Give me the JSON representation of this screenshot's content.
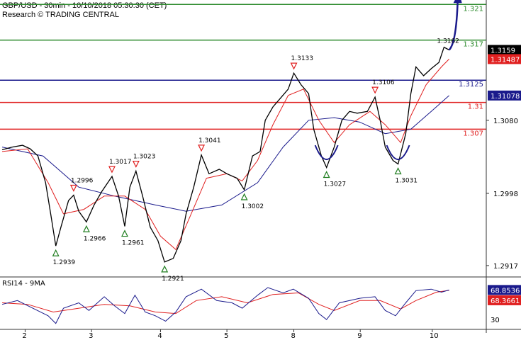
{
  "header": {
    "line1": "GBP/USD - 30min - 10/10/2018 05:30:30 (CET)",
    "line2": "Research © TRADING CENTRAL"
  },
  "chart_data": {
    "type": "line",
    "title": "GBP/USD - 30min - 10/10/2018 05:30:30 (CET)",
    "price_ylim": [
      1.2905,
      1.3215
    ],
    "x_ticks": [
      {
        "label": "2",
        "t": 0.045
      },
      {
        "label": "3",
        "t": 0.175
      },
      {
        "label": "4",
        "t": 0.31
      },
      {
        "label": "5",
        "t": 0.44
      },
      {
        "label": "8",
        "t": 0.571
      },
      {
        "label": "9",
        "t": 0.701
      },
      {
        "label": "10",
        "t": 0.842
      }
    ],
    "y_ticks": [
      "1.3080",
      "1.2998",
      "1.2917"
    ],
    "y_tick_values": [
      1.308,
      1.2998,
      1.2917
    ],
    "levels": [
      {
        "label": "1.321",
        "value": 1.321,
        "color": "#2e8b2e"
      },
      {
        "label": "1.317",
        "value": 1.317,
        "color": "#2e8b2e"
      },
      {
        "label": "1.3125",
        "value": 1.3125,
        "color": "#1a1a8c"
      },
      {
        "label": "1.31",
        "value": 1.31,
        "color": "#e02020"
      },
      {
        "label": "1.307",
        "value": 1.307,
        "color": "#e02020"
      }
    ],
    "last_price": {
      "label": "1.3159",
      "value": 1.3159
    },
    "ema_fast_tag": {
      "label": "1.31487",
      "value": 1.31487
    },
    "ema_slow_tag": {
      "label": "1.31078",
      "value": 1.31078
    },
    "price_path": [
      [
        0.0,
        1.3047
      ],
      [
        0.02,
        1.305
      ],
      [
        0.04,
        1.3052
      ],
      [
        0.055,
        1.3048
      ],
      [
        0.07,
        1.304
      ],
      [
        0.085,
        1.301
      ],
      [
        0.095,
        1.2975
      ],
      [
        0.105,
        1.2939
      ],
      [
        0.115,
        1.296
      ],
      [
        0.13,
        1.299
      ],
      [
        0.14,
        1.2996
      ],
      [
        0.15,
        1.2978
      ],
      [
        0.165,
        1.2966
      ],
      [
        0.18,
        1.2985
      ],
      [
        0.195,
        1.3
      ],
      [
        0.215,
        1.3017
      ],
      [
        0.228,
        1.2995
      ],
      [
        0.24,
        1.2961
      ],
      [
        0.25,
        1.3005
      ],
      [
        0.262,
        1.3023
      ],
      [
        0.275,
        1.2995
      ],
      [
        0.29,
        1.296
      ],
      [
        0.305,
        1.2945
      ],
      [
        0.318,
        1.2921
      ],
      [
        0.335,
        1.2925
      ],
      [
        0.35,
        1.2945
      ],
      [
        0.36,
        1.2975
      ],
      [
        0.375,
        1.3005
      ],
      [
        0.39,
        1.3041
      ],
      [
        0.405,
        1.302
      ],
      [
        0.425,
        1.3025
      ],
      [
        0.44,
        1.302
      ],
      [
        0.46,
        1.3015
      ],
      [
        0.474,
        1.3002
      ],
      [
        0.49,
        1.304
      ],
      [
        0.505,
        1.3045
      ],
      [
        0.515,
        1.308
      ],
      [
        0.53,
        1.3095
      ],
      [
        0.545,
        1.3105
      ],
      [
        0.56,
        1.3115
      ],
      [
        0.571,
        1.3133
      ],
      [
        0.585,
        1.312
      ],
      [
        0.6,
        1.311
      ],
      [
        0.61,
        1.307
      ],
      [
        0.625,
        1.304
      ],
      [
        0.635,
        1.3027
      ],
      [
        0.65,
        1.305
      ],
      [
        0.665,
        1.308
      ],
      [
        0.68,
        1.309
      ],
      [
        0.695,
        1.3088
      ],
      [
        0.715,
        1.309
      ],
      [
        0.73,
        1.3106
      ],
      [
        0.74,
        1.308
      ],
      [
        0.75,
        1.305
      ],
      [
        0.765,
        1.3035
      ],
      [
        0.775,
        1.3031
      ],
      [
        0.79,
        1.3065
      ],
      [
        0.8,
        1.311
      ],
      [
        0.81,
        1.314
      ],
      [
        0.825,
        1.313
      ],
      [
        0.84,
        1.3138
      ],
      [
        0.855,
        1.3145
      ],
      [
        0.865,
        1.3162
      ],
      [
        0.875,
        1.3159
      ]
    ],
    "ema_fast_path": [
      [
        0.0,
        1.3045
      ],
      [
        0.05,
        1.3048
      ],
      [
        0.09,
        1.301
      ],
      [
        0.12,
        1.2975
      ],
      [
        0.16,
        1.298
      ],
      [
        0.2,
        1.2995
      ],
      [
        0.24,
        1.2995
      ],
      [
        0.28,
        1.298
      ],
      [
        0.31,
        1.295
      ],
      [
        0.34,
        1.2935
      ],
      [
        0.37,
        1.2975
      ],
      [
        0.4,
        1.3015
      ],
      [
        0.44,
        1.302
      ],
      [
        0.47,
        1.3012
      ],
      [
        0.5,
        1.3035
      ],
      [
        0.53,
        1.3075
      ],
      [
        0.56,
        1.3108
      ],
      [
        0.59,
        1.3115
      ],
      [
        0.62,
        1.308
      ],
      [
        0.65,
        1.3055
      ],
      [
        0.68,
        1.3075
      ],
      [
        0.72,
        1.309
      ],
      [
        0.75,
        1.3075
      ],
      [
        0.78,
        1.3055
      ],
      [
        0.8,
        1.3085
      ],
      [
        0.83,
        1.312
      ],
      [
        0.86,
        1.314
      ],
      [
        0.875,
        1.31487
      ]
    ],
    "ema_slow_path": [
      [
        0.0,
        1.305
      ],
      [
        0.08,
        1.304
      ],
      [
        0.15,
        1.3005
      ],
      [
        0.22,
        1.2995
      ],
      [
        0.3,
        1.2985
      ],
      [
        0.36,
        1.2978
      ],
      [
        0.43,
        1.2985
      ],
      [
        0.5,
        1.301
      ],
      [
        0.55,
        1.305
      ],
      [
        0.6,
        1.308
      ],
      [
        0.65,
        1.3083
      ],
      [
        0.7,
        1.3078
      ],
      [
        0.75,
        1.3065
      ],
      [
        0.8,
        1.307
      ],
      [
        0.84,
        1.309
      ],
      [
        0.875,
        1.31078
      ]
    ],
    "annotations": [
      {
        "label": "1.2996",
        "value": 1.2996,
        "t": 0.14,
        "kind": "resistance"
      },
      {
        "label": "1.3017",
        "value": 1.3017,
        "t": 0.215,
        "kind": "resistance"
      },
      {
        "label": "1.3023",
        "value": 1.3023,
        "t": 0.262,
        "kind": "resistance"
      },
      {
        "label": "1.3041",
        "value": 1.3041,
        "t": 0.39,
        "kind": "resistance"
      },
      {
        "label": "1.3133",
        "value": 1.3133,
        "t": 0.571,
        "kind": "resistance"
      },
      {
        "label": "1.3106",
        "value": 1.3106,
        "t": 0.73,
        "kind": "resistance"
      },
      {
        "label": "1.3162",
        "value": 1.3162,
        "t": 0.865,
        "kind": "high"
      },
      {
        "label": "1.2939",
        "value": 1.2939,
        "t": 0.105,
        "kind": "support"
      },
      {
        "label": "1.2966",
        "value": 1.2966,
        "t": 0.165,
        "kind": "support"
      },
      {
        "label": "1.2961",
        "value": 1.2961,
        "t": 0.24,
        "kind": "support"
      },
      {
        "label": "1.2921",
        "value": 1.2921,
        "t": 0.318,
        "kind": "support"
      },
      {
        "label": "1.3002",
        "value": 1.3002,
        "t": 0.474,
        "kind": "support"
      },
      {
        "label": "1.3027",
        "value": 1.3027,
        "t": 0.635,
        "kind": "support"
      },
      {
        "label": "1.3031",
        "value": 1.3031,
        "t": 0.775,
        "kind": "support"
      }
    ],
    "rsi": {
      "label": "RSI14 - 9MA",
      "ylim": [
        20,
        85
      ],
      "y_ticks": [
        30
      ],
      "last_rsi": {
        "label": "68.8536",
        "value": 68.8536
      },
      "last_ma": {
        "label": "68.3661",
        "value": 68.3661
      },
      "rsi_path": [
        [
          0.0,
          50
        ],
        [
          0.03,
          55
        ],
        [
          0.06,
          45
        ],
        [
          0.09,
          35
        ],
        [
          0.105,
          25
        ],
        [
          0.12,
          45
        ],
        [
          0.15,
          52
        ],
        [
          0.17,
          42
        ],
        [
          0.2,
          60
        ],
        [
          0.22,
          48
        ],
        [
          0.24,
          38
        ],
        [
          0.26,
          62
        ],
        [
          0.28,
          40
        ],
        [
          0.3,
          35
        ],
        [
          0.32,
          28
        ],
        [
          0.34,
          40
        ],
        [
          0.36,
          60
        ],
        [
          0.39,
          70
        ],
        [
          0.42,
          55
        ],
        [
          0.45,
          52
        ],
        [
          0.47,
          45
        ],
        [
          0.5,
          62
        ],
        [
          0.52,
          72
        ],
        [
          0.55,
          65
        ],
        [
          0.57,
          70
        ],
        [
          0.6,
          58
        ],
        [
          0.62,
          38
        ],
        [
          0.635,
          30
        ],
        [
          0.66,
          52
        ],
        [
          0.7,
          58
        ],
        [
          0.73,
          60
        ],
        [
          0.75,
          42
        ],
        [
          0.77,
          35
        ],
        [
          0.79,
          52
        ],
        [
          0.81,
          68
        ],
        [
          0.84,
          70
        ],
        [
          0.86,
          66
        ],
        [
          0.875,
          68.85
        ]
      ],
      "ma_path": [
        [
          0.0,
          52
        ],
        [
          0.05,
          50
        ],
        [
          0.1,
          40
        ],
        [
          0.14,
          44
        ],
        [
          0.2,
          50
        ],
        [
          0.25,
          48
        ],
        [
          0.3,
          40
        ],
        [
          0.34,
          38
        ],
        [
          0.38,
          55
        ],
        [
          0.43,
          60
        ],
        [
          0.48,
          52
        ],
        [
          0.53,
          63
        ],
        [
          0.58,
          65
        ],
        [
          0.62,
          50
        ],
        [
          0.65,
          42
        ],
        [
          0.7,
          55
        ],
        [
          0.74,
          55
        ],
        [
          0.78,
          44
        ],
        [
          0.81,
          55
        ],
        [
          0.85,
          66
        ],
        [
          0.875,
          68.37
        ]
      ]
    }
  },
  "colors": {
    "price": "#000000",
    "ema_fast": "#e02020",
    "ema_slow": "#1a1a8c",
    "resistance": "#e02020",
    "support": "#1e7d1e",
    "arrow": "#1a1a8c",
    "label_bg": "#000000",
    "axis": "#333333"
  }
}
